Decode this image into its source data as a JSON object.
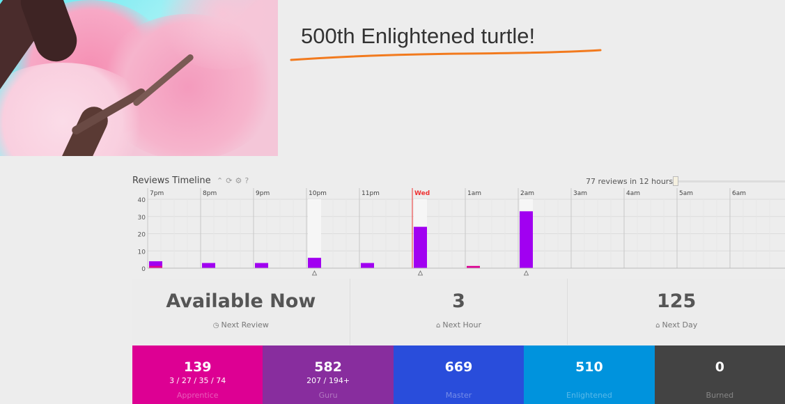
{
  "banner": {
    "title": "500th Enlightened turtle!"
  },
  "timeline": {
    "title": "Reviews Timeline",
    "icons": [
      "chevron-up-icon",
      "refresh-icon",
      "gear-icon",
      "help-icon"
    ],
    "summary": "77 reviews in 12 hours",
    "slider_handle": "≡"
  },
  "chart_data": {
    "type": "bar",
    "title": "Reviews Timeline",
    "categories": [
      "7pm",
      "8pm",
      "9pm",
      "10pm",
      "11pm",
      "Wed",
      "1am",
      "2am",
      "3am",
      "4am",
      "5am",
      "6am"
    ],
    "series": [
      {
        "values": [
          4,
          3,
          3,
          6,
          3,
          24,
          1,
          33,
          0,
          0,
          0,
          0
        ]
      }
    ],
    "burn_markers": [
      1,
      0,
      0,
      0,
      0,
      0,
      1,
      0,
      0,
      0,
      0,
      0
    ],
    "backdrop": [
      0,
      0,
      0,
      40,
      0,
      40,
      0,
      40,
      0,
      0,
      0,
      0
    ],
    "triangle_marks": [
      "10pm",
      "Wed",
      "2am"
    ],
    "current_marker": "Wed",
    "yticks": [
      0,
      10,
      20,
      30,
      40
    ],
    "ylim": [
      0,
      40
    ],
    "colors": {
      "bar": "#a100f1",
      "burn": "#dd0093",
      "backdrop": "#f6f6f6",
      "marker": "#e33"
    }
  },
  "stats": [
    {
      "value": "Available Now",
      "label": "Next Review",
      "icon": "clock-icon"
    },
    {
      "value": "3",
      "label": "Next Hour",
      "icon": "inbox-icon"
    },
    {
      "value": "125",
      "label": "Next Day",
      "icon": "inbox-icon"
    }
  ],
  "srs": [
    {
      "count": "139",
      "sub": "3 / 27 / 35 / 74",
      "label": "Apprentice",
      "color": "#dd0093"
    },
    {
      "count": "582",
      "sub": "207 / 194+",
      "label": "Guru",
      "color": "#882d9e"
    },
    {
      "count": "669",
      "sub": "",
      "label": "Master",
      "color": "#294ddb"
    },
    {
      "count": "510",
      "sub": "",
      "label": "Enlightened",
      "color": "#0093dd"
    },
    {
      "count": "0",
      "sub": "",
      "label": "Burned",
      "color": "#434343"
    }
  ]
}
